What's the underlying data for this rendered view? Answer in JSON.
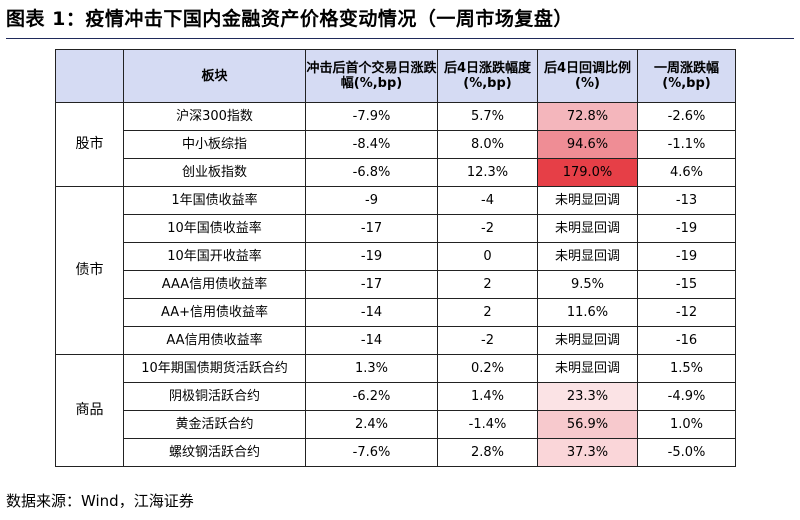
{
  "title": "图表 1：疫情冲击下国内金融资产价格变动情况（一周市场复盘）",
  "header": {
    "col_block": "板块",
    "col_first_day": "冲击后首个交易日涨跌幅(%,bp)",
    "col_4day": "后4日涨跌幅度(%,bp)",
    "col_recover": "后4日回调比例(%)",
    "col_week": "一周涨跌幅(%,bp)"
  },
  "groups": [
    {
      "name": "股市",
      "rows": [
        {
          "item": "沪深300指数",
          "first": "-7.9%",
          "four": "5.7%",
          "recover": "72.8%",
          "week": "-2.6%",
          "heat": "#f4b6bc"
        },
        {
          "item": "中小板综指",
          "first": "-8.4%",
          "four": "8.0%",
          "recover": "94.6%",
          "week": "-1.1%",
          "heat": "#ef8d95"
        },
        {
          "item": "创业板指数",
          "first": "-6.8%",
          "four": "12.3%",
          "recover": "179.0%",
          "week": "4.6%",
          "heat": "#e63f47"
        }
      ]
    },
    {
      "name": "债市",
      "rows": [
        {
          "item": "1年国债收益率",
          "first": "-9",
          "four": "-4",
          "recover": "未明显回调",
          "week": "-13",
          "heat": ""
        },
        {
          "item": "10年国债收益率",
          "first": "-17",
          "four": "-2",
          "recover": "未明显回调",
          "week": "-19",
          "heat": ""
        },
        {
          "item": "10年国开收益率",
          "first": "-19",
          "four": "0",
          "recover": "未明显回调",
          "week": "-19",
          "heat": ""
        },
        {
          "item": "AAA信用债收益率",
          "first": "-17",
          "four": "2",
          "recover": "9.5%",
          "week": "-15",
          "heat": ""
        },
        {
          "item": "AA+信用债收益率",
          "first": "-14",
          "four": "2",
          "recover": "11.6%",
          "week": "-12",
          "heat": ""
        },
        {
          "item": "AA信用债收益率",
          "first": "-14",
          "four": "-2",
          "recover": "未明显回调",
          "week": "-16",
          "heat": ""
        }
      ]
    },
    {
      "name": "商品",
      "rows": [
        {
          "item": "10年期国债期货活跃合约",
          "first": "1.3%",
          "four": "0.2%",
          "recover": "未明显回调",
          "week": "1.5%",
          "heat": ""
        },
        {
          "item": "阴极铜活跃合约",
          "first": "-6.2%",
          "four": "1.4%",
          "recover": "23.3%",
          "week": "-4.9%",
          "heat": "#fbe3e5"
        },
        {
          "item": "黄金活跃合约",
          "first": "2.4%",
          "four": "-1.4%",
          "recover": "56.9%",
          "week": "1.0%",
          "heat": "#f7c9cd"
        },
        {
          "item": "螺纹钢活跃合约",
          "first": "-7.6%",
          "four": "2.8%",
          "recover": "37.3%",
          "week": "-5.0%",
          "heat": "#fad6d9"
        }
      ]
    }
  ],
  "footer": "数据来源：Wind，江海证券"
}
